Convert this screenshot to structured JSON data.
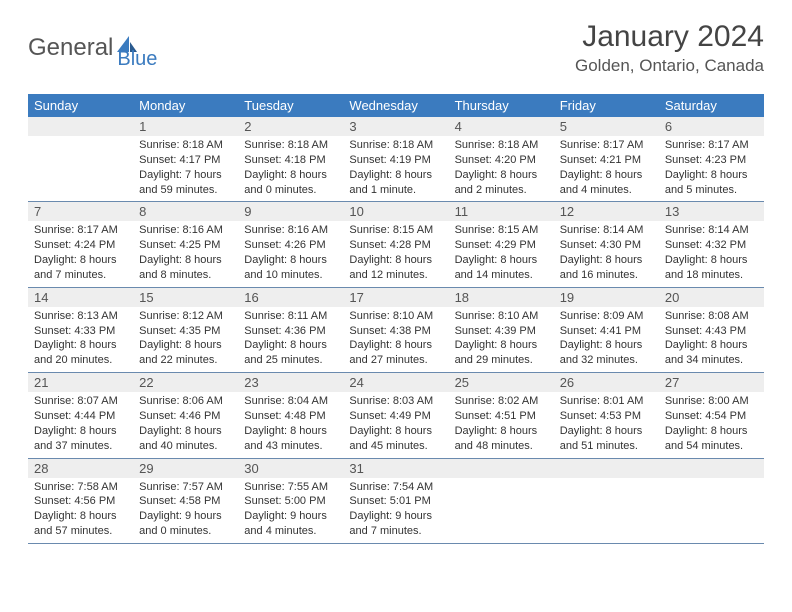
{
  "logo": {
    "text1": "General",
    "text2": "Blue"
  },
  "title": "January 2024",
  "location": "Golden, Ontario, Canada",
  "colors": {
    "header_bg": "#3b7bbf",
    "header_text": "#ffffff",
    "daynum_bg": "#eeeeee",
    "border": "#6a8aae",
    "text": "#333333"
  },
  "weekdays": [
    "Sunday",
    "Monday",
    "Tuesday",
    "Wednesday",
    "Thursday",
    "Friday",
    "Saturday"
  ],
  "weeks": [
    [
      {
        "day": "",
        "lines": []
      },
      {
        "day": "1",
        "lines": [
          "Sunrise: 8:18 AM",
          "Sunset: 4:17 PM",
          "Daylight: 7 hours",
          "and 59 minutes."
        ]
      },
      {
        "day": "2",
        "lines": [
          "Sunrise: 8:18 AM",
          "Sunset: 4:18 PM",
          "Daylight: 8 hours",
          "and 0 minutes."
        ]
      },
      {
        "day": "3",
        "lines": [
          "Sunrise: 8:18 AM",
          "Sunset: 4:19 PM",
          "Daylight: 8 hours",
          "and 1 minute."
        ]
      },
      {
        "day": "4",
        "lines": [
          "Sunrise: 8:18 AM",
          "Sunset: 4:20 PM",
          "Daylight: 8 hours",
          "and 2 minutes."
        ]
      },
      {
        "day": "5",
        "lines": [
          "Sunrise: 8:17 AM",
          "Sunset: 4:21 PM",
          "Daylight: 8 hours",
          "and 4 minutes."
        ]
      },
      {
        "day": "6",
        "lines": [
          "Sunrise: 8:17 AM",
          "Sunset: 4:23 PM",
          "Daylight: 8 hours",
          "and 5 minutes."
        ]
      }
    ],
    [
      {
        "day": "7",
        "lines": [
          "Sunrise: 8:17 AM",
          "Sunset: 4:24 PM",
          "Daylight: 8 hours",
          "and 7 minutes."
        ]
      },
      {
        "day": "8",
        "lines": [
          "Sunrise: 8:16 AM",
          "Sunset: 4:25 PM",
          "Daylight: 8 hours",
          "and 8 minutes."
        ]
      },
      {
        "day": "9",
        "lines": [
          "Sunrise: 8:16 AM",
          "Sunset: 4:26 PM",
          "Daylight: 8 hours",
          "and 10 minutes."
        ]
      },
      {
        "day": "10",
        "lines": [
          "Sunrise: 8:15 AM",
          "Sunset: 4:28 PM",
          "Daylight: 8 hours",
          "and 12 minutes."
        ]
      },
      {
        "day": "11",
        "lines": [
          "Sunrise: 8:15 AM",
          "Sunset: 4:29 PM",
          "Daylight: 8 hours",
          "and 14 minutes."
        ]
      },
      {
        "day": "12",
        "lines": [
          "Sunrise: 8:14 AM",
          "Sunset: 4:30 PM",
          "Daylight: 8 hours",
          "and 16 minutes."
        ]
      },
      {
        "day": "13",
        "lines": [
          "Sunrise: 8:14 AM",
          "Sunset: 4:32 PM",
          "Daylight: 8 hours",
          "and 18 minutes."
        ]
      }
    ],
    [
      {
        "day": "14",
        "lines": [
          "Sunrise: 8:13 AM",
          "Sunset: 4:33 PM",
          "Daylight: 8 hours",
          "and 20 minutes."
        ]
      },
      {
        "day": "15",
        "lines": [
          "Sunrise: 8:12 AM",
          "Sunset: 4:35 PM",
          "Daylight: 8 hours",
          "and 22 minutes."
        ]
      },
      {
        "day": "16",
        "lines": [
          "Sunrise: 8:11 AM",
          "Sunset: 4:36 PM",
          "Daylight: 8 hours",
          "and 25 minutes."
        ]
      },
      {
        "day": "17",
        "lines": [
          "Sunrise: 8:10 AM",
          "Sunset: 4:38 PM",
          "Daylight: 8 hours",
          "and 27 minutes."
        ]
      },
      {
        "day": "18",
        "lines": [
          "Sunrise: 8:10 AM",
          "Sunset: 4:39 PM",
          "Daylight: 8 hours",
          "and 29 minutes."
        ]
      },
      {
        "day": "19",
        "lines": [
          "Sunrise: 8:09 AM",
          "Sunset: 4:41 PM",
          "Daylight: 8 hours",
          "and 32 minutes."
        ]
      },
      {
        "day": "20",
        "lines": [
          "Sunrise: 8:08 AM",
          "Sunset: 4:43 PM",
          "Daylight: 8 hours",
          "and 34 minutes."
        ]
      }
    ],
    [
      {
        "day": "21",
        "lines": [
          "Sunrise: 8:07 AM",
          "Sunset: 4:44 PM",
          "Daylight: 8 hours",
          "and 37 minutes."
        ]
      },
      {
        "day": "22",
        "lines": [
          "Sunrise: 8:06 AM",
          "Sunset: 4:46 PM",
          "Daylight: 8 hours",
          "and 40 minutes."
        ]
      },
      {
        "day": "23",
        "lines": [
          "Sunrise: 8:04 AM",
          "Sunset: 4:48 PM",
          "Daylight: 8 hours",
          "and 43 minutes."
        ]
      },
      {
        "day": "24",
        "lines": [
          "Sunrise: 8:03 AM",
          "Sunset: 4:49 PM",
          "Daylight: 8 hours",
          "and 45 minutes."
        ]
      },
      {
        "day": "25",
        "lines": [
          "Sunrise: 8:02 AM",
          "Sunset: 4:51 PM",
          "Daylight: 8 hours",
          "and 48 minutes."
        ]
      },
      {
        "day": "26",
        "lines": [
          "Sunrise: 8:01 AM",
          "Sunset: 4:53 PM",
          "Daylight: 8 hours",
          "and 51 minutes."
        ]
      },
      {
        "day": "27",
        "lines": [
          "Sunrise: 8:00 AM",
          "Sunset: 4:54 PM",
          "Daylight: 8 hours",
          "and 54 minutes."
        ]
      }
    ],
    [
      {
        "day": "28",
        "lines": [
          "Sunrise: 7:58 AM",
          "Sunset: 4:56 PM",
          "Daylight: 8 hours",
          "and 57 minutes."
        ]
      },
      {
        "day": "29",
        "lines": [
          "Sunrise: 7:57 AM",
          "Sunset: 4:58 PM",
          "Daylight: 9 hours",
          "and 0 minutes."
        ]
      },
      {
        "day": "30",
        "lines": [
          "Sunrise: 7:55 AM",
          "Sunset: 5:00 PM",
          "Daylight: 9 hours",
          "and 4 minutes."
        ]
      },
      {
        "day": "31",
        "lines": [
          "Sunrise: 7:54 AM",
          "Sunset: 5:01 PM",
          "Daylight: 9 hours",
          "and 7 minutes."
        ]
      },
      {
        "day": "",
        "lines": []
      },
      {
        "day": "",
        "lines": []
      },
      {
        "day": "",
        "lines": []
      }
    ]
  ]
}
